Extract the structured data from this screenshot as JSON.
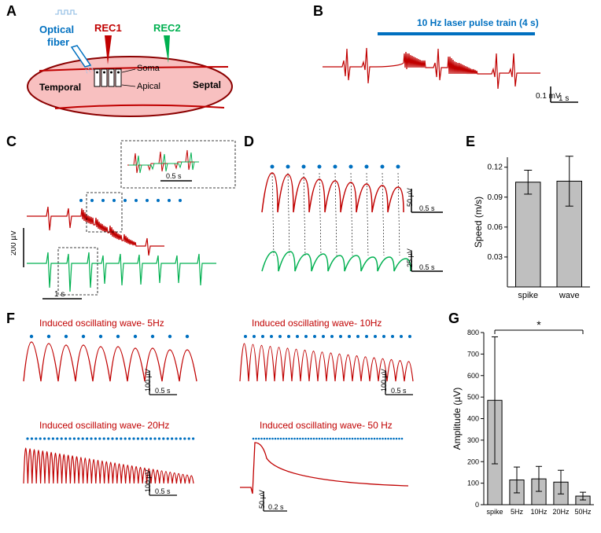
{
  "labels": {
    "A": "A",
    "B": "B",
    "C": "C",
    "D": "D",
    "E": "E",
    "F": "F",
    "G": "G"
  },
  "panelA": {
    "optical_fiber": "Optical\nfiber",
    "rec1": "REC1",
    "rec2": "REC2",
    "soma": "Soma",
    "apical": "Apical",
    "temporal": "Temporal",
    "septal": "Septal",
    "tissue_fill": "#f8c0c0",
    "tissue_stroke": "#8b0000",
    "optical_color": "#0070c0",
    "rec1_color": "#c00000",
    "rec2_color": "#00b050",
    "line_color": "#c00000"
  },
  "panelB": {
    "title": "10 Hz laser pulse train (4 s)",
    "title_color": "#0070c0",
    "trace_color": "#c00000",
    "scale_y": "0.1 mV",
    "scale_x": "1 s"
  },
  "panelC": {
    "red_trace": "#c00000",
    "green_trace": "#00b050",
    "scale_y": "200 µV",
    "scale_x": "1 s",
    "inset_scale": "0.5 s",
    "dots_color": "#0070c0"
  },
  "panelD": {
    "red_trace": "#c00000",
    "green_trace": "#00b050",
    "scale_red": "50 µV",
    "scale_green": "25 µV",
    "scale_x": "0.5 s",
    "dots_color": "#0070c0"
  },
  "panelE": {
    "type": "bar",
    "ylabel": "Speed (m/s)",
    "categories": [
      "spike",
      "wave"
    ],
    "values": [
      0.105,
      0.106
    ],
    "errors": [
      0.012,
      0.025
    ],
    "ylim": [
      0,
      0.13
    ],
    "yticks": [
      0.03,
      0.06,
      0.09,
      0.12
    ],
    "bar_color": "#bfbfbf",
    "bar_stroke": "#000",
    "label_fontsize": 11
  },
  "panelF": {
    "title_5": "Induced oscillating wave- 5Hz",
    "title_10": "Induced oscillating wave- 10Hz",
    "title_20": "Induced oscillating wave- 20Hz",
    "title_50": "Induced oscillating wave- 50 Hz",
    "title_color": "#c00000",
    "trace_color": "#c00000",
    "scale_y_100": "100 µV",
    "scale_y_50": "50 µV",
    "scale_x_05": "0.5 s",
    "scale_x_02": "0.2 s",
    "dots_color": "#0070c0"
  },
  "panelG": {
    "type": "bar",
    "ylabel": "Amplitude (µV)",
    "categories": [
      "spike",
      "5Hz",
      "10Hz",
      "20Hz",
      "50Hz"
    ],
    "values": [
      485,
      115,
      120,
      105,
      40
    ],
    "errors": [
      295,
      60,
      58,
      55,
      18
    ],
    "ylim": [
      0,
      800
    ],
    "yticks": [
      0,
      100,
      200,
      300,
      400,
      500,
      600,
      700,
      800
    ],
    "bar_color": "#bfbfbf",
    "bar_stroke": "#000",
    "sig_marker": "*"
  }
}
